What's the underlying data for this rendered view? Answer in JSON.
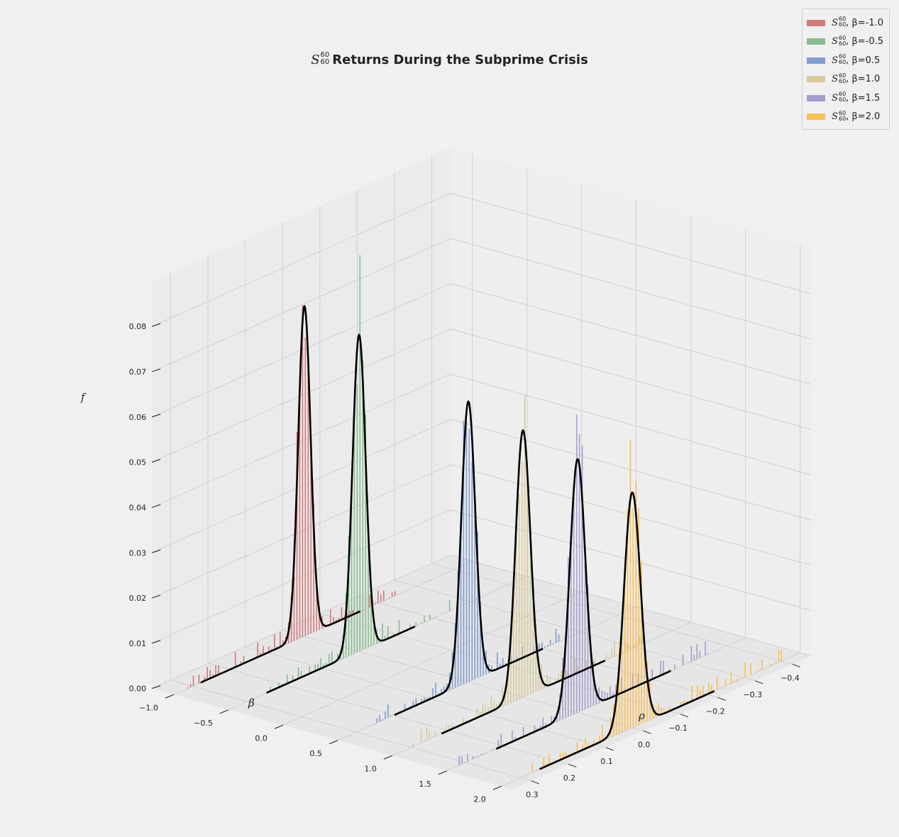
{
  "title": {
    "symbol": "S",
    "superscript": "60",
    "subscript": "60",
    "text": "Returns During the Subprime Crisis"
  },
  "legend": {
    "position": "top-right",
    "items": [
      {
        "symbol": "S",
        "sup": "60",
        "sub": "60",
        "suffix": ", β=-1.0",
        "color": "#cc6666"
      },
      {
        "symbol": "S",
        "sup": "60",
        "sub": "60",
        "suffix": ", β=-0.5",
        "color": "#77b380"
      },
      {
        "symbol": "S",
        "sup": "60",
        "sub": "60",
        "suffix": ", β=0.5",
        "color": "#6f8fc7"
      },
      {
        "symbol": "S",
        "sup": "60",
        "sub": "60",
        "suffix": ", β=1.0",
        "color": "#d6c48c"
      },
      {
        "symbol": "S",
        "sup": "60",
        "sub": "60",
        "suffix": ", β=1.5",
        "color": "#9c8ec7"
      },
      {
        "symbol": "S",
        "sup": "60",
        "sub": "60",
        "suffix": ", β=2.0",
        "color": "#fdb63c"
      }
    ]
  },
  "chart_data": {
    "type": "bar",
    "projection": "3d",
    "grid": true,
    "xlabel": "ρ",
    "ylabel": "β",
    "zlabel": "f",
    "xlim": [
      -0.45,
      0.35
    ],
    "ylim": [
      -1.2,
      2.1
    ],
    "zlim": [
      0,
      0.09
    ],
    "x_ticks": [
      "0.3",
      "0.2",
      "0.1",
      "0.0",
      "−0.1",
      "−0.2",
      "−0.3",
      "−0.4"
    ],
    "x_tick_values": [
      0.3,
      0.2,
      0.1,
      0.0,
      -0.1,
      -0.2,
      -0.3,
      -0.4
    ],
    "y_ticks": [
      "−1.0",
      "−0.5",
      "0.0",
      "0.5",
      "1.0",
      "1.5",
      "2.0"
    ],
    "y_tick_values": [
      -1.0,
      -0.5,
      0.0,
      0.5,
      1.0,
      1.5,
      2.0
    ],
    "z_ticks": [
      "0.00",
      "0.01",
      "0.02",
      "0.03",
      "0.04",
      "0.05",
      "0.06",
      "0.07",
      "0.08"
    ],
    "z_tick_values": [
      0.0,
      0.01,
      0.02,
      0.03,
      0.04,
      0.05,
      0.06,
      0.07,
      0.08
    ],
    "bin_width": 0.0075,
    "series": [
      {
        "beta": -1.0,
        "color": "#cc6666",
        "peak": 0.073,
        "mu": 0.0,
        "sigma": 0.0165,
        "rho_min": -0.25,
        "rho_max": 0.32,
        "curve_min": -0.15,
        "curve_max": 0.28
      },
      {
        "beta": -0.5,
        "color": "#77b380",
        "peak": 0.07,
        "mu": 0.0,
        "sigma": 0.0175,
        "rho_min": -0.25,
        "rho_max": 0.26,
        "curve_min": -0.15,
        "curve_max": 0.25
      },
      {
        "beta": 0.5,
        "color": "#6f8fc7",
        "peak": 0.062,
        "mu": 0.0,
        "sigma": 0.0185,
        "rho_min": -0.25,
        "rho_max": 0.25,
        "curve_min": -0.2,
        "curve_max": 0.2
      },
      {
        "beta": 1.0,
        "color": "#d6c48c",
        "peak": 0.059,
        "mu": 0.0,
        "sigma": 0.0195,
        "rho_min": -0.32,
        "rho_max": 0.3,
        "curve_min": -0.22,
        "curve_max": 0.22
      },
      {
        "beta": 1.5,
        "color": "#9c8ec7",
        "peak": 0.056,
        "mu": 0.0,
        "sigma": 0.0205,
        "rho_min": -0.35,
        "rho_max": 0.32,
        "curve_min": -0.25,
        "curve_max": 0.22
      },
      {
        "beta": 2.0,
        "color": "#fdb63c",
        "peak": 0.052,
        "mu": 0.0,
        "sigma": 0.022,
        "rho_min": -0.4,
        "rho_max": 0.3,
        "curve_min": -0.22,
        "curve_max": 0.25
      }
    ]
  }
}
